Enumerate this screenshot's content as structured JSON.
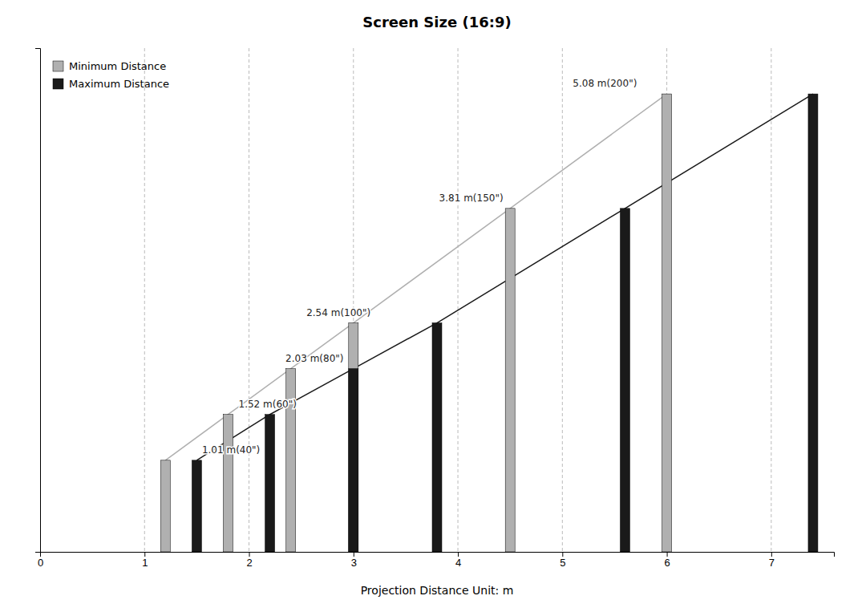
{
  "chart_data": {
    "type": "bar",
    "title": "Screen Size (16:9)",
    "xlabel": "Projection Distance Unit: m",
    "series": [
      {
        "name": "Minimum Distance",
        "color": "#b0b0b0",
        "x": [
          1.2,
          1.8,
          2.4,
          3.0,
          4.5,
          6.0
        ],
        "values": [
          0.4,
          0.6,
          0.8,
          1.0,
          1.5,
          2.0
        ]
      },
      {
        "name": "Maximum Distance",
        "color": "#1a1a1a",
        "x": [
          1.5,
          2.2,
          3.0,
          3.8,
          5.6,
          7.4
        ],
        "values": [
          0.4,
          0.6,
          0.8,
          1.0,
          1.5,
          2.0
        ]
      }
    ],
    "xlim": [
      0.0,
      7.6
    ],
    "ylim": [
      0.0,
      2.2
    ],
    "xticks": [
      0,
      1,
      2,
      3,
      4,
      5,
      6,
      7
    ],
    "yticks": [],
    "grid": true,
    "legend": "upper left",
    "tick_labels": "x",
    "annotations": [
      {
        "text": "1.01 m(40\")",
        "x": 1.55,
        "y": 0.41
      },
      {
        "text": "1.52 m(60\")",
        "x": 1.9,
        "y": 0.61
      },
      {
        "text": "2.03 m(80\")",
        "x": 2.35,
        "y": 0.81
      },
      {
        "text": "2.54 m(100\")",
        "x": 2.55,
        "y": 1.01
      },
      {
        "text": "3.81 m(150\")",
        "x": 3.82,
        "y": 1.51
      },
      {
        "text": "5.08 m(200\")",
        "x": 5.1,
        "y": 2.01
      }
    ]
  }
}
